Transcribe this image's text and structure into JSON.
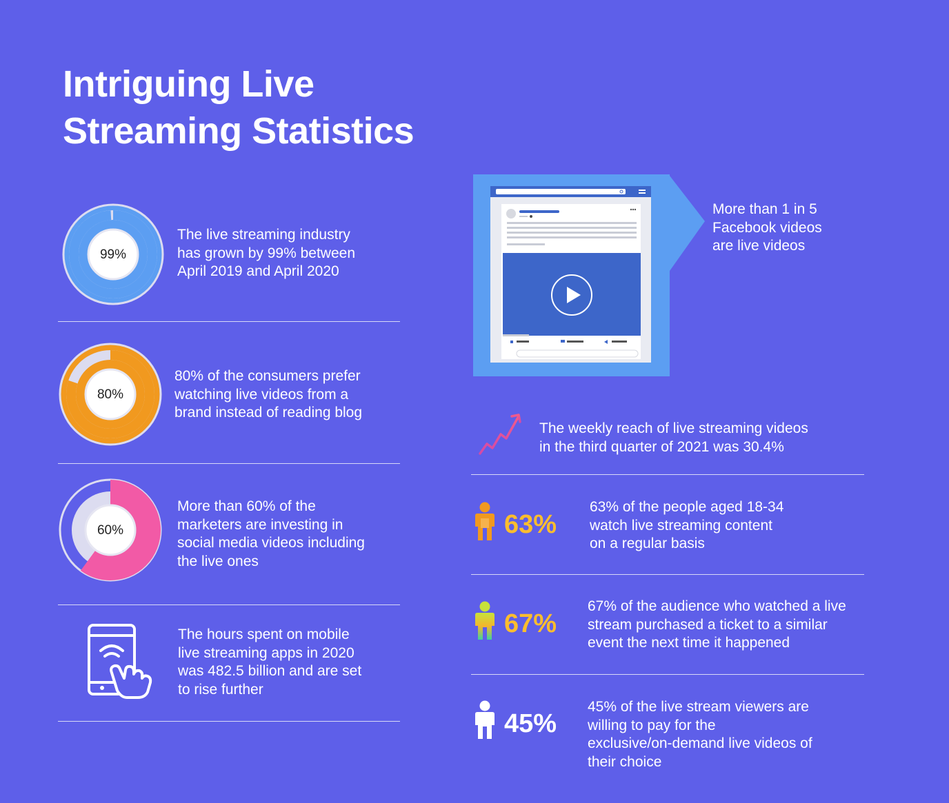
{
  "title": {
    "line1": "Intriguing Live",
    "line2": "Streaming Statistics"
  },
  "colors": {
    "background": "#5e5fe9",
    "blue_ring": "#5c9ef2",
    "orange_ring": "#f1991f",
    "pink_ring": "#f25aa6",
    "ring_track": "#dcdcf0",
    "yellow_pct": "#fbbd2e",
    "facebook_blue": "#3d66c9"
  },
  "left_stats": [
    {
      "value": 99,
      "label": "99%",
      "lines": [
        "The live streaming industry",
        "has grown by 99% between",
        "April 2019 and April 2020"
      ]
    },
    {
      "value": 80,
      "label": "80%",
      "lines": [
        "80% of the consumers prefer",
        "watching live videos from a",
        "brand instead of reading blog"
      ]
    },
    {
      "value": 60,
      "label": "60%",
      "lines": [
        "More than 60% of the",
        "marketers are investing in",
        "social media videos including",
        "the live ones"
      ]
    },
    {
      "icon": "mobile-touch-icon",
      "lines": [
        "The hours spent on mobile",
        "live streaming apps in 2020",
        "was 482.5 billion and are set",
        "to rise further"
      ]
    }
  ],
  "right_stats": {
    "facebook": {
      "icon": "facebook-video-mockup",
      "lines": [
        "More than 1 in 5",
        "Facebook videos",
        "are live videos"
      ]
    },
    "reach": {
      "icon": "growth-chart-icon",
      "lines": [
        "The weekly reach of live streaming videos",
        "in the third quarter of 2021 was 30.4%"
      ]
    },
    "people": [
      {
        "icon": "person-icon-orange",
        "pct": "63%",
        "lines": [
          "63% of the people aged 18-34",
          "watch live streaming content",
          "on a regular basis"
        ]
      },
      {
        "icon": "person-icon-gradient",
        "pct": "67%",
        "lines": [
          "67% of the audience who watched a live",
          "stream purchased a ticket to a similar",
          "event the next time it happened"
        ]
      },
      {
        "icon": "person-icon-white",
        "pct": "45%",
        "lines": [
          "45% of the live stream viewers are",
          "willing to pay for the",
          "exclusive/on-demand live videos of",
          "their choice"
        ]
      }
    ]
  }
}
